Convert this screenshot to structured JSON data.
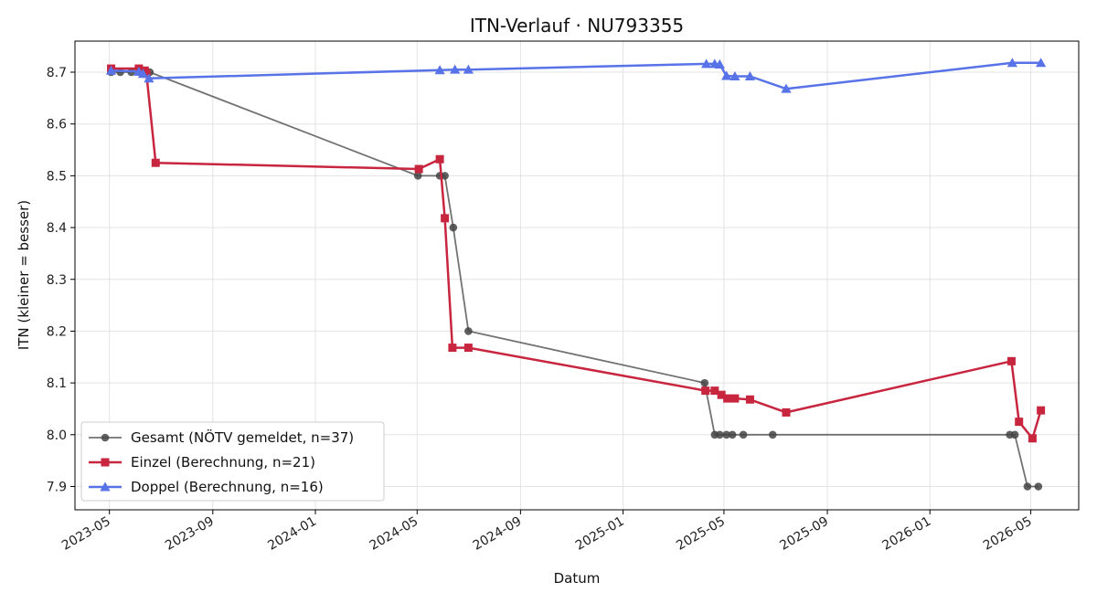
{
  "chart_data": {
    "type": "line",
    "title": "ITN-Verlauf · NU793355",
    "xlabel": "Datum",
    "ylabel": "ITN  (kleiner = besser)",
    "x_type": "date",
    "xlim": [
      "2023-03-21",
      "2026-06-27"
    ],
    "ylim": [
      7.855,
      8.76
    ],
    "x_ticks": [
      {
        "date": "2023-05-01",
        "label": "2023-05"
      },
      {
        "date": "2023-09-01",
        "label": "2023-09"
      },
      {
        "date": "2024-01-01",
        "label": "2024-01"
      },
      {
        "date": "2024-05-01",
        "label": "2024-05"
      },
      {
        "date": "2024-09-01",
        "label": "2024-09"
      },
      {
        "date": "2025-01-01",
        "label": "2025-01"
      },
      {
        "date": "2025-05-01",
        "label": "2025-05"
      },
      {
        "date": "2025-09-01",
        "label": "2025-09"
      },
      {
        "date": "2026-01-01",
        "label": "2026-01"
      },
      {
        "date": "2026-05-01",
        "label": "2026-05"
      }
    ],
    "y_ticks": [
      7.9,
      8.0,
      8.1,
      8.2,
      8.3,
      8.4,
      8.5,
      8.6,
      8.7
    ],
    "grid": true,
    "legend_position": "lower-left",
    "series": [
      {
        "name": "Gesamt (NÖTV gemeldet, n=37)",
        "color": "#444444",
        "marker": "circle",
        "points": [
          {
            "x": "2023-05-03",
            "y": 8.7
          },
          {
            "x": "2023-05-14",
            "y": 8.7
          },
          {
            "x": "2023-05-27",
            "y": 8.7
          },
          {
            "x": "2023-06-06",
            "y": 8.7
          },
          {
            "x": "2023-06-18",
            "y": 8.7
          },
          {
            "x": "2024-05-02",
            "y": 8.5
          },
          {
            "x": "2024-05-28",
            "y": 8.5
          },
          {
            "x": "2024-06-03",
            "y": 8.5
          },
          {
            "x": "2024-06-13",
            "y": 8.4
          },
          {
            "x": "2024-07-01",
            "y": 8.2
          },
          {
            "x": "2025-04-08",
            "y": 8.1
          },
          {
            "x": "2025-04-20",
            "y": 8.0
          },
          {
            "x": "2025-04-26",
            "y": 8.0
          },
          {
            "x": "2025-05-04",
            "y": 8.0
          },
          {
            "x": "2025-05-11",
            "y": 8.0
          },
          {
            "x": "2025-05-24",
            "y": 8.0
          },
          {
            "x": "2025-06-28",
            "y": 8.0
          },
          {
            "x": "2026-04-06",
            "y": 8.0
          },
          {
            "x": "2026-04-12",
            "y": 8.0
          },
          {
            "x": "2026-04-27",
            "y": 7.9
          },
          {
            "x": "2026-05-10",
            "y": 7.9
          }
        ]
      },
      {
        "name": "Einzel (Berechnung, n=21)",
        "color": "#c8253f",
        "marker": "square",
        "points": [
          {
            "x": "2023-05-03",
            "y": 8.707
          },
          {
            "x": "2023-06-05",
            "y": 8.707
          },
          {
            "x": "2023-06-12",
            "y": 8.703
          },
          {
            "x": "2023-06-14",
            "y": 8.697
          },
          {
            "x": "2023-06-25",
            "y": 8.525
          },
          {
            "x": "2024-05-03",
            "y": 8.513
          },
          {
            "x": "2024-05-28",
            "y": 8.532
          },
          {
            "x": "2024-06-03",
            "y": 8.418
          },
          {
            "x": "2024-06-12",
            "y": 8.168
          },
          {
            "x": "2024-07-01",
            "y": 8.168
          },
          {
            "x": "2025-04-09",
            "y": 8.085
          },
          {
            "x": "2025-04-20",
            "y": 8.085
          },
          {
            "x": "2025-04-28",
            "y": 8.077
          },
          {
            "x": "2025-05-05",
            "y": 8.07
          },
          {
            "x": "2025-05-14",
            "y": 8.07
          },
          {
            "x": "2025-06-01",
            "y": 8.068
          },
          {
            "x": "2025-07-14",
            "y": 8.043
          },
          {
            "x": "2026-04-08",
            "y": 8.142
          },
          {
            "x": "2026-04-17",
            "y": 8.025
          },
          {
            "x": "2026-05-03",
            "y": 7.993
          },
          {
            "x": "2026-05-13",
            "y": 8.047
          }
        ]
      },
      {
        "name": "Doppel (Berechnung, n=16)",
        "color": "#5872e8",
        "marker": "triangle",
        "points": [
          {
            "x": "2023-05-03",
            "y": 8.703
          },
          {
            "x": "2023-06-05",
            "y": 8.701
          },
          {
            "x": "2023-06-10",
            "y": 8.697
          },
          {
            "x": "2023-06-17",
            "y": 8.688
          },
          {
            "x": "2024-05-28",
            "y": 8.704
          },
          {
            "x": "2024-06-15",
            "y": 8.705
          },
          {
            "x": "2024-07-01",
            "y": 8.705
          },
          {
            "x": "2025-04-10",
            "y": 8.716
          },
          {
            "x": "2025-04-20",
            "y": 8.716
          },
          {
            "x": "2025-04-26",
            "y": 8.715
          },
          {
            "x": "2025-05-04",
            "y": 8.693
          },
          {
            "x": "2025-05-14",
            "y": 8.692
          },
          {
            "x": "2025-06-01",
            "y": 8.692
          },
          {
            "x": "2025-07-14",
            "y": 8.668
          },
          {
            "x": "2026-04-09",
            "y": 8.718
          },
          {
            "x": "2026-05-13",
            "y": 8.718
          }
        ]
      }
    ]
  }
}
